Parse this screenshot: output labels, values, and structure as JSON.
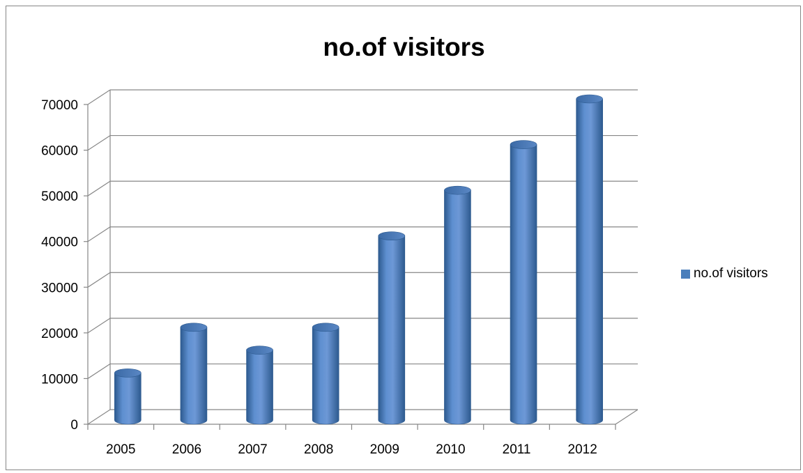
{
  "chart_data": {
    "type": "bar",
    "style": "3d-cylinder",
    "title": "no.of visitors",
    "xlabel": "",
    "ylabel": "",
    "categories": [
      "2005",
      "2006",
      "2007",
      "2008",
      "2009",
      "2010",
      "2011",
      "2012"
    ],
    "series": [
      {
        "name": "no.of visitors",
        "values": [
          10000,
          20000,
          15000,
          20000,
          40000,
          50000,
          60000,
          70000
        ]
      }
    ],
    "ylim": [
      0,
      70000
    ],
    "yticks": [
      "0",
      "10000",
      "20000",
      "30000",
      "40000",
      "50000",
      "60000",
      "70000"
    ],
    "grid": true,
    "legend": "right",
    "colors": {
      "bar_light": "#6D98D6",
      "bar_mid": "#4A7EBB",
      "bar_dark": "#2D5A8F",
      "grid": "#868686"
    }
  }
}
